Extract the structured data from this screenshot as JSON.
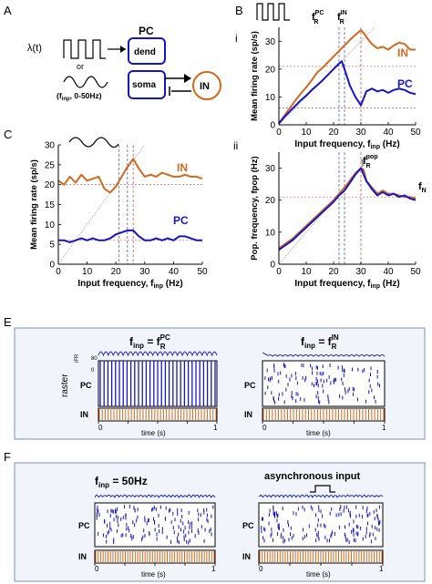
{
  "panels": {
    "A": "A",
    "B": "B",
    "C": "C",
    "E": "E",
    "F": "F",
    "Bi": "i",
    "Bii": "ii"
  },
  "schematic": {
    "lambda": "λ(t)",
    "or": "or",
    "finp_range": "(f",
    "finp_sub": "inp",
    "finp_rest": ", 0-50Hz)",
    "pc_title": "PC",
    "dend": "dend",
    "soma": "soma",
    "in": "IN"
  },
  "colors": {
    "PC": "#1515c8",
    "IN": "#d2691e",
    "dash_blue": "#5560c8",
    "dash_red": "#c85a5a",
    "diag": "#999999"
  },
  "chart_data": [
    {
      "id": "Bi",
      "type": "line",
      "title": "",
      "xlabel": "Input frequency, f_inp (Hz)",
      "ylabel": "Mean firing rate (sp/s)",
      "xlim": [
        0,
        50
      ],
      "ylim": [
        0,
        35
      ],
      "xticks": [
        0,
        10,
        20,
        30,
        40,
        50
      ],
      "yticks": [
        0,
        10,
        20,
        30
      ],
      "hlines": [
        6,
        21
      ],
      "vlines": [
        22,
        24,
        30
      ],
      "markers": {
        "fR_PC": "f",
        "fR_PC_sup": "PC",
        "fR_PC_sub": "R",
        "fR_IN_sup": "IN",
        "fR_IN_sub": "R"
      },
      "series": [
        {
          "name": "IN",
          "x": [
            0,
            2,
            4,
            6,
            8,
            10,
            12,
            14,
            16,
            18,
            20,
            22,
            24,
            26,
            28,
            30,
            31,
            32,
            34,
            36,
            38,
            40,
            42,
            44,
            46,
            48,
            50
          ],
          "values": [
            0.5,
            3.3,
            6,
            8.7,
            11.2,
            13.5,
            16,
            18.8,
            20.5,
            22.5,
            24.5,
            26.5,
            28.5,
            30.5,
            32.3,
            34,
            33,
            31.5,
            29,
            27.5,
            28,
            27,
            28.5,
            29.5,
            29,
            27,
            27
          ]
        },
        {
          "name": "PC",
          "x": [
            0,
            2,
            4,
            6,
            8,
            10,
            12,
            14,
            16,
            18,
            20,
            22,
            23,
            24,
            26,
            28,
            30,
            32,
            34,
            36,
            38,
            40,
            42,
            44,
            46,
            48,
            50
          ],
          "values": [
            0.5,
            2.8,
            4.8,
            6.8,
            8.8,
            10.5,
            12.5,
            14.2,
            16,
            18,
            20,
            22,
            22.8,
            20,
            14,
            10,
            7,
            12,
            13,
            12,
            12.5,
            11.5,
            12.5,
            13,
            12.5,
            11.5,
            11
          ]
        }
      ]
    },
    {
      "id": "Bii",
      "type": "line",
      "title": "",
      "xlabel": "Input frequency, f_inp (Hz)",
      "ylabel": "Pop. frequency, f_pop (Hz)",
      "xlim": [
        0,
        50
      ],
      "ylim": [
        0,
        35
      ],
      "xticks": [
        0,
        10,
        20,
        30,
        40,
        50
      ],
      "yticks": [
        0,
        10,
        20,
        30
      ],
      "hlines": [
        21
      ],
      "vlines": [
        22,
        24,
        30
      ],
      "annotations": {
        "fR_pop": "f",
        "fR_pop_sup": "pop",
        "fR_pop_sub": "R",
        "fN": "f",
        "fN_sub": "N"
      },
      "series": [
        {
          "name": "IN",
          "x": [
            0,
            5,
            10,
            15,
            20,
            25,
            28,
            30,
            31,
            32,
            34,
            36,
            38,
            40,
            42,
            44,
            46,
            48,
            50
          ],
          "values": [
            5,
            8,
            12,
            16,
            20,
            25,
            28.5,
            30,
            29.5,
            26,
            24,
            22,
            23,
            22,
            22,
            21.5,
            21,
            21,
            20.5
          ]
        },
        {
          "name": "PC",
          "x": [
            0,
            5,
            10,
            15,
            20,
            22,
            24,
            26,
            28,
            30,
            31,
            32,
            34,
            36,
            38,
            40,
            42,
            44,
            46,
            48,
            50
          ],
          "values": [
            4.5,
            7.5,
            11.5,
            15.5,
            19.5,
            21.5,
            23,
            25.5,
            28,
            30,
            28,
            26,
            23.5,
            21.5,
            22.5,
            21.5,
            22,
            21,
            21.5,
            20.5,
            20
          ]
        }
      ]
    },
    {
      "id": "C",
      "type": "line",
      "title": "",
      "xlabel": "Input frequency, f_inp (Hz)",
      "ylabel": "Mean firing rate (sp/s)",
      "xlim": [
        0,
        50
      ],
      "ylim": [
        0,
        30
      ],
      "xticks": [
        0,
        10,
        20,
        30,
        40,
        50
      ],
      "yticks": [
        0,
        5,
        10,
        15,
        20,
        25,
        30
      ],
      "hlines": [
        6,
        20
      ],
      "vlines": [
        21,
        24,
        26
      ],
      "series": [
        {
          "name": "IN",
          "x": [
            0,
            2,
            4,
            6,
            8,
            10,
            12,
            14,
            16,
            18,
            20,
            22,
            24,
            26,
            28,
            30,
            32,
            34,
            36,
            38,
            40,
            42,
            44,
            46,
            48,
            50
          ],
          "values": [
            21,
            20,
            22,
            20.5,
            22.5,
            21,
            21.5,
            22,
            19,
            18,
            19.5,
            22,
            24.5,
            26.5,
            24,
            22,
            22.5,
            22,
            23,
            22.5,
            22,
            22,
            22.5,
            22,
            22,
            21.5
          ]
        },
        {
          "name": "PC",
          "x": [
            0,
            2,
            4,
            6,
            8,
            10,
            12,
            14,
            16,
            18,
            20,
            22,
            24,
            26,
            28,
            30,
            32,
            34,
            36,
            38,
            40,
            42,
            44,
            46,
            48,
            50
          ],
          "values": [
            6,
            6,
            5.5,
            6,
            6.5,
            6,
            6.5,
            6,
            6,
            6.5,
            7.5,
            8,
            8.5,
            8.5,
            7,
            6,
            6,
            6.5,
            6,
            6.5,
            6,
            7,
            7,
            6.5,
            6,
            6
          ]
        }
      ]
    }
  ],
  "panel_E": {
    "left_title": "f",
    "left_title_sub": "inp",
    "left_eq": " = f",
    "left_sup": "PC",
    "left_sub": "R",
    "right_title": "f",
    "right_title_sub": "inp",
    "right_eq": " = f",
    "right_sup": "IN",
    "right_sub": "R",
    "ifr_label": "iFR",
    "ifr_tick": "80",
    "ifr_zero": "0",
    "raster_label": "raster",
    "pc_label": "PC",
    "in_label": "IN",
    "xlabel": "time (s)",
    "x0": "0",
    "x1": "1"
  },
  "panel_F": {
    "left_title": "f",
    "left_title_sub": "inp",
    "left_eq": " = 50Hz",
    "right_title": "asynchronous input",
    "pc_label": "PC",
    "in_label": "IN",
    "xlabel": "time (s)",
    "x0": "0",
    "x1": "1"
  }
}
